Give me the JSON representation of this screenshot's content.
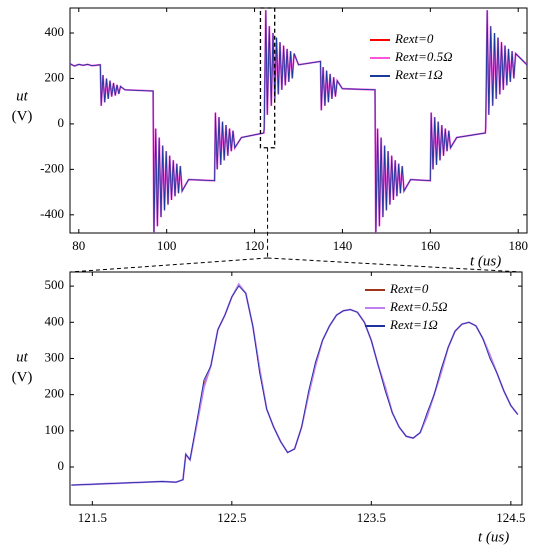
{
  "chart_data": [
    {
      "type": "line",
      "xlabel": "t (us)",
      "ylabel": [
        "ut",
        "(V)"
      ],
      "xlim": [
        78,
        182
      ],
      "ylim": [
        -480,
        510
      ],
      "xticks": [
        80,
        100,
        120,
        140,
        160,
        180
      ],
      "yticks": [
        -400,
        -200,
        0,
        200,
        400
      ],
      "x": [
        78,
        79,
        80,
        81,
        82,
        83,
        84.9,
        85.1,
        85.5,
        85.9,
        86.3,
        86.7,
        87.1,
        87.5,
        87.9,
        88.3,
        88.7,
        89.1,
        89.5,
        90.5,
        96.9,
        97.1,
        97.5,
        97.9,
        98.3,
        98.7,
        99.1,
        99.5,
        99.9,
        100.3,
        100.7,
        101.1,
        101.5,
        101.9,
        102.3,
        102.7,
        103.1,
        103.5,
        105,
        110.9,
        111.1,
        111.5,
        111.9,
        112.3,
        112.7,
        113.1,
        113.5,
        113.9,
        114.3,
        114.7,
        115.1,
        115.5,
        117,
        122.1,
        122.2,
        122.55,
        122.9,
        123.35,
        123.8,
        124.2,
        124.6,
        125,
        125.4,
        125.8,
        126.2,
        126.6,
        127,
        127.4,
        127.8,
        128.2,
        128.6,
        129,
        130,
        135,
        135.2,
        135.6,
        136,
        136.4,
        136.8,
        137.2,
        137.6,
        138,
        138.4,
        138.8,
        140,
        147.4,
        147.6,
        148,
        148.4,
        148.8,
        149.2,
        149.6,
        150,
        150.4,
        150.8,
        151.2,
        151.6,
        152,
        152.4,
        152.8,
        153.2,
        153.6,
        154,
        155.5,
        160,
        160.2,
        160.6,
        161,
        161.4,
        161.8,
        162.2,
        162.6,
        163,
        163.4,
        163.8,
        164.2,
        164.6,
        166,
        172.5,
        172.6,
        172.95,
        173.3,
        173.75,
        174.2,
        174.6,
        175,
        175.4,
        175.8,
        176.2,
        176.6,
        177,
        177.4,
        177.8,
        178.2,
        178.6,
        179,
        179.4,
        182
      ],
      "series": [
        {
          "name": "Rext=0",
          "color": "#ff0000",
          "values": [
            265,
            255,
            262,
            258,
            262,
            256,
            260,
            80,
            215,
            95,
            200,
            110,
            190,
            120,
            180,
            125,
            172,
            132,
            165,
            150,
            145,
            -500,
            -20,
            -450,
            -60,
            -410,
            -95,
            -380,
            -120,
            -355,
            -140,
            -335,
            -160,
            -318,
            -175,
            -305,
            -185,
            -295,
            -245,
            -250,
            50,
            -200,
            30,
            -180,
            10,
            -160,
            -5,
            -140,
            -20,
            -120,
            -30,
            -105,
            -60,
            -40,
            -20,
            500,
            40,
            430,
            80,
            400,
            110,
            380,
            130,
            360,
            150,
            345,
            170,
            330,
            185,
            320,
            200,
            310,
            260,
            275,
            60,
            250,
            80,
            235,
            95,
            220,
            110,
            205,
            120,
            190,
            155,
            150,
            -500,
            -20,
            -450,
            -60,
            -410,
            -95,
            -380,
            -120,
            -355,
            -140,
            -335,
            -160,
            -318,
            -175,
            -305,
            -185,
            -295,
            -245,
            -250,
            50,
            -200,
            30,
            -180,
            10,
            -160,
            -5,
            -140,
            -20,
            -120,
            -30,
            -105,
            -60,
            -40,
            -20,
            500,
            40,
            430,
            80,
            400,
            110,
            380,
            130,
            360,
            150,
            345,
            170,
            330,
            185,
            320,
            200,
            310,
            260
          ]
        },
        {
          "name": "Rext=0.5Ω",
          "color": "#ff55dd",
          "values": [
            265,
            255,
            262,
            258,
            262,
            256,
            260,
            80,
            215,
            95,
            200,
            110,
            190,
            120,
            180,
            125,
            172,
            132,
            165,
            150,
            145,
            -500,
            -20,
            -450,
            -60,
            -410,
            -95,
            -380,
            -120,
            -355,
            -140,
            -335,
            -160,
            -318,
            -175,
            -305,
            -185,
            -295,
            -245,
            -250,
            50,
            -200,
            30,
            -180,
            10,
            -160,
            -5,
            -140,
            -20,
            -120,
            -30,
            -105,
            -60,
            -40,
            -20,
            500,
            40,
            430,
            80,
            400,
            110,
            380,
            130,
            360,
            150,
            345,
            170,
            330,
            185,
            320,
            200,
            310,
            260,
            275,
            60,
            250,
            80,
            235,
            95,
            220,
            110,
            205,
            120,
            190,
            155,
            150,
            -500,
            -20,
            -450,
            -60,
            -410,
            -95,
            -380,
            -120,
            -355,
            -140,
            -335,
            -160,
            -318,
            -175,
            -305,
            -185,
            -295,
            -245,
            -250,
            50,
            -200,
            30,
            -180,
            10,
            -160,
            -5,
            -140,
            -20,
            -120,
            -30,
            -105,
            -60,
            -40,
            -20,
            500,
            40,
            430,
            80,
            400,
            110,
            380,
            130,
            360,
            150,
            345,
            170,
            330,
            185,
            320,
            200,
            310,
            260
          ]
        },
        {
          "name": "Rext=1Ω",
          "color": "#1a3a9a",
          "values": [
            265,
            255,
            262,
            258,
            262,
            256,
            260,
            80,
            215,
            95,
            200,
            110,
            190,
            120,
            180,
            125,
            172,
            132,
            165,
            150,
            145,
            -500,
            -20,
            -450,
            -60,
            -410,
            -95,
            -380,
            -120,
            -355,
            -140,
            -335,
            -160,
            -318,
            -175,
            -305,
            -185,
            -295,
            -245,
            -250,
            50,
            -200,
            30,
            -180,
            10,
            -160,
            -5,
            -140,
            -20,
            -120,
            -30,
            -105,
            -60,
            -40,
            -20,
            500,
            40,
            430,
            80,
            400,
            110,
            380,
            130,
            360,
            150,
            345,
            170,
            330,
            185,
            320,
            200,
            310,
            260,
            275,
            60,
            250,
            80,
            235,
            95,
            220,
            110,
            205,
            120,
            190,
            155,
            150,
            -500,
            -20,
            -450,
            -60,
            -410,
            -95,
            -380,
            -120,
            -355,
            -140,
            -335,
            -160,
            -318,
            -175,
            -305,
            -185,
            -295,
            -245,
            -250,
            50,
            -200,
            30,
            -180,
            10,
            -160,
            -5,
            -140,
            -20,
            -120,
            -30,
            -105,
            -60,
            -40,
            -20,
            500,
            40,
            430,
            80,
            400,
            110,
            380,
            130,
            360,
            150,
            345,
            170,
            330,
            185,
            320,
            200,
            310,
            260
          ]
        }
      ]
    },
    {
      "type": "line",
      "xlabel": "t (us)",
      "ylabel": [
        "ut",
        "(V)"
      ],
      "xlim": [
        121.34,
        124.58
      ],
      "ylim": [
        -105,
        539
      ],
      "xticks": [
        121.5,
        122.5,
        123.5,
        124.5
      ],
      "yticks": [
        0,
        100,
        200,
        300,
        400,
        500
      ],
      "x": [
        121.35,
        121.6,
        121.8,
        122.0,
        122.1,
        122.15,
        122.17,
        122.2,
        122.25,
        122.3,
        122.35,
        122.4,
        122.45,
        122.5,
        122.55,
        122.6,
        122.65,
        122.7,
        122.75,
        122.8,
        122.85,
        122.9,
        122.95,
        123.0,
        123.05,
        123.1,
        123.15,
        123.2,
        123.25,
        123.3,
        123.35,
        123.4,
        123.45,
        123.5,
        123.55,
        123.6,
        123.65,
        123.7,
        123.75,
        123.8,
        123.85,
        123.9,
        123.95,
        124.0,
        124.05,
        124.1,
        124.15,
        124.2,
        124.25,
        124.3,
        124.35,
        124.4,
        124.45,
        124.5,
        124.55
      ],
      "series": [
        {
          "name": "Rext=0",
          "color": "#a03418",
          "values": [
            -50,
            -46,
            -43,
            -40,
            -42,
            -35,
            35,
            20,
            120,
            230,
            280,
            380,
            420,
            470,
            505,
            480,
            390,
            260,
            160,
            110,
            70,
            40,
            50,
            110,
            200,
            290,
            350,
            390,
            420,
            432,
            435,
            428,
            400,
            350,
            280,
            210,
            150,
            110,
            85,
            80,
            95,
            140,
            200,
            270,
            330,
            375,
            395,
            400,
            390,
            355,
            310,
            260,
            210,
            170,
            145
          ]
        },
        {
          "name": "Rext=0.5Ω",
          "color": "#c080f0",
          "values": [
            -50,
            -46,
            -43,
            -40,
            -42,
            -35,
            35,
            20,
            120,
            220,
            280,
            380,
            420,
            470,
            505,
            480,
            390,
            270,
            160,
            110,
            70,
            40,
            50,
            110,
            200,
            280,
            350,
            390,
            420,
            432,
            435,
            428,
            400,
            350,
            280,
            220,
            150,
            110,
            85,
            80,
            95,
            140,
            200,
            260,
            330,
            375,
            395,
            400,
            390,
            355,
            310,
            260,
            210,
            170,
            145
          ]
        },
        {
          "name": "Rext=1Ω",
          "color": "#2030a0",
          "values": [
            -50,
            -46,
            -43,
            -40,
            -42,
            -35,
            35,
            20,
            130,
            240,
            280,
            380,
            420,
            470,
            500,
            480,
            390,
            260,
            160,
            110,
            70,
            40,
            50,
            110,
            210,
            290,
            350,
            390,
            420,
            432,
            435,
            428,
            400,
            350,
            280,
            210,
            150,
            110,
            85,
            80,
            95,
            150,
            200,
            270,
            330,
            375,
            395,
            400,
            390,
            355,
            300,
            260,
            210,
            170,
            145
          ]
        }
      ]
    }
  ]
}
